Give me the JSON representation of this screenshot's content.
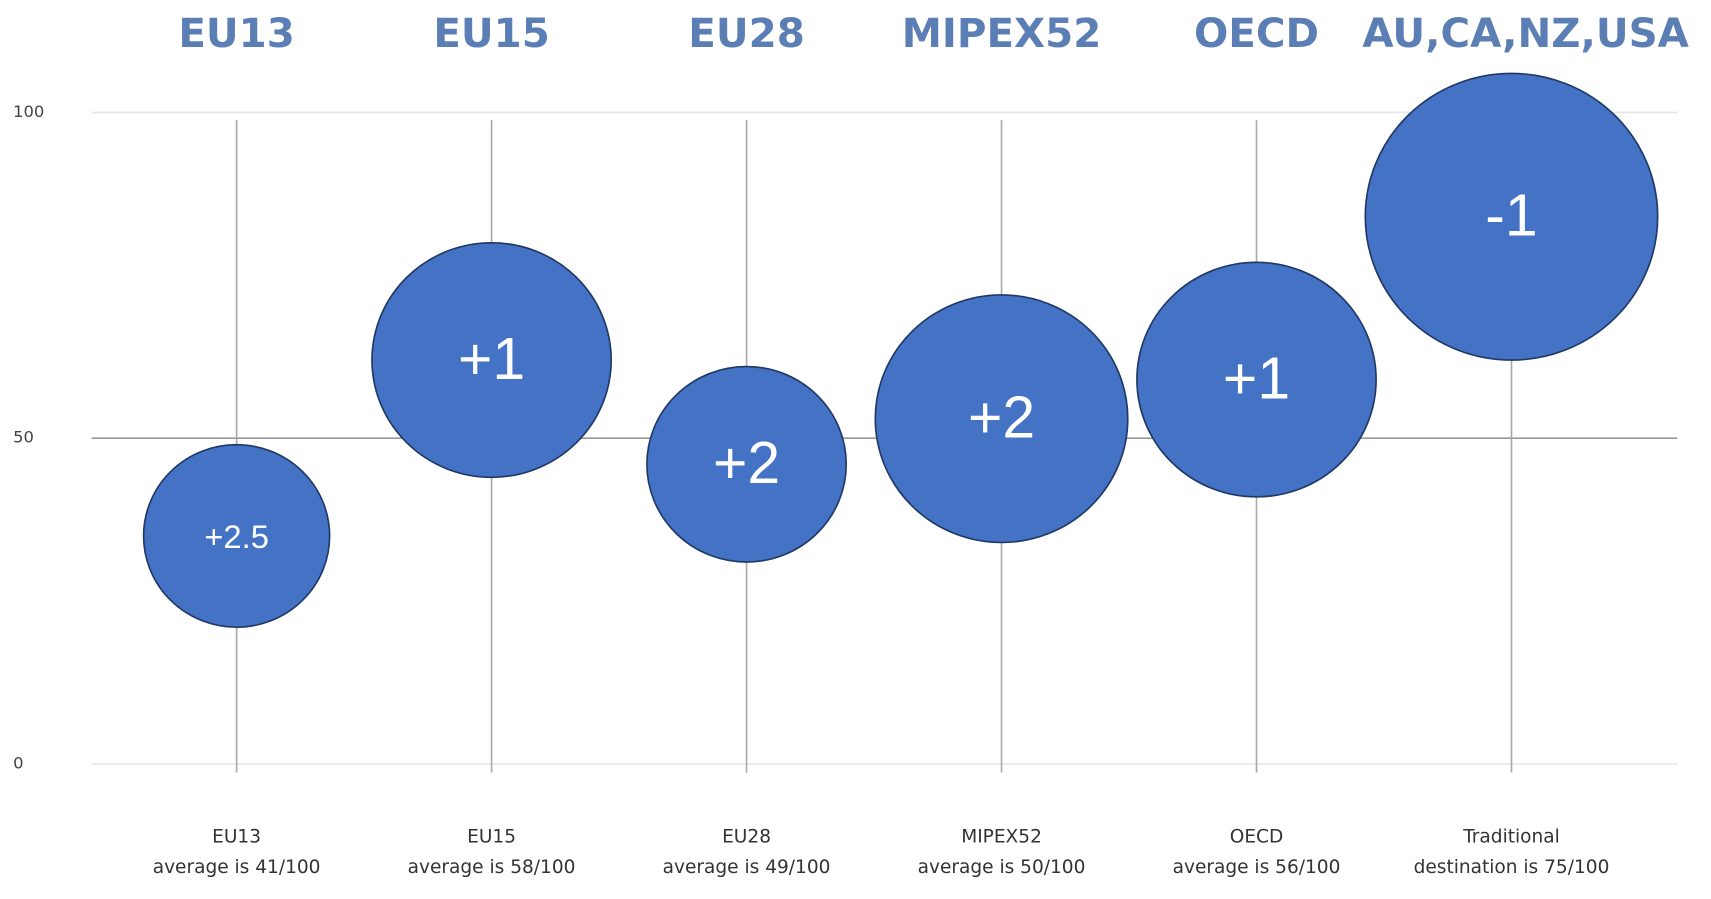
{
  "chart_data": {
    "type": "bubble",
    "categories": [
      "EU13",
      "EU15",
      "EU28",
      "MIPEX52",
      "OECD",
      "AU,CA,NZ,USA"
    ],
    "bottom_labels": [
      [
        "EU13",
        "average is 41/100"
      ],
      [
        "EU15",
        "average is 58/100"
      ],
      [
        "EU28",
        "average is 49/100"
      ],
      [
        "MIPEX52",
        "average is 50/100"
      ],
      [
        "OECD",
        "average is 56/100"
      ],
      [
        "Traditional",
        "destination is 75/100"
      ]
    ],
    "values": [
      35,
      62,
      46,
      53,
      59,
      84
    ],
    "sizes": [
      14,
      18,
      15,
      19,
      18,
      22
    ],
    "bubble_labels": [
      "+2.5",
      "+1",
      "+2",
      "+2",
      "+1",
      "-1"
    ],
    "color": "#4472c4",
    "ylim": [
      0,
      100
    ],
    "yticks": [
      0,
      50,
      100
    ],
    "grid": true
  }
}
